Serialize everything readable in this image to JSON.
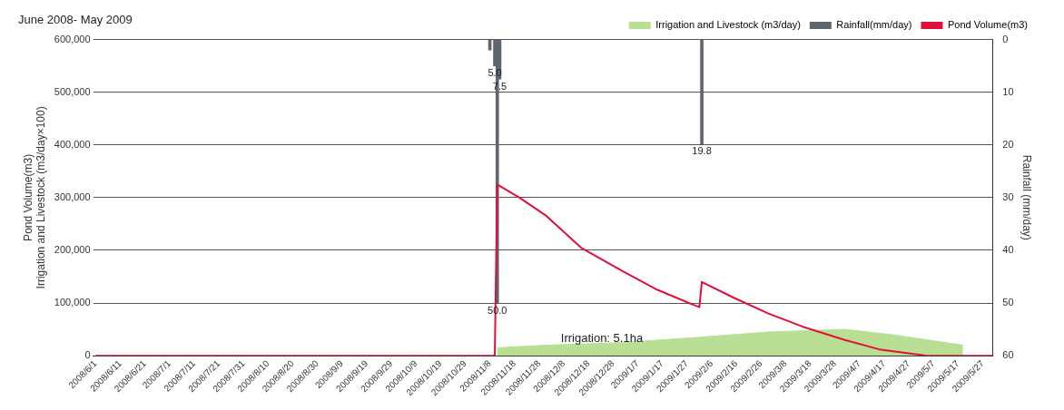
{
  "chart_data": {
    "type": "line",
    "title": "June 2008- May 2009",
    "xlim": [
      "2008-05-31",
      "2009-05-31"
    ],
    "xticks": [
      {
        "value": "2008-06-01",
        "label": "2008/6/1"
      },
      {
        "value": "2008-06-11",
        "label": "2008/6/11"
      },
      {
        "value": "2008-06-21",
        "label": "2008/6/21"
      },
      {
        "value": "2008-07-01",
        "label": "2008/7/1"
      },
      {
        "value": "2008-07-11",
        "label": "2008/7/11"
      },
      {
        "value": "2008-07-21",
        "label": "2008/7/21"
      },
      {
        "value": "2008-07-31",
        "label": "2008/7/31"
      },
      {
        "value": "2008-08-10",
        "label": "2008/8/10"
      },
      {
        "value": "2008-08-20",
        "label": "2008/8/20"
      },
      {
        "value": "2008-08-30",
        "label": "2008/8/30"
      },
      {
        "value": "2008-09-09",
        "label": "2008/9/9"
      },
      {
        "value": "2008-09-19",
        "label": "2008/9/19"
      },
      {
        "value": "2008-09-29",
        "label": "2008/9/29"
      },
      {
        "value": "2008-10-09",
        "label": "2008/10/9"
      },
      {
        "value": "2008-10-19",
        "label": "2008/10/19"
      },
      {
        "value": "2008-10-29",
        "label": "2008/10/29"
      },
      {
        "value": "2008-11-08",
        "label": "2008/11/8"
      },
      {
        "value": "2008-11-18",
        "label": "2008/11/18"
      },
      {
        "value": "2008-11-28",
        "label": "2008/11/28"
      },
      {
        "value": "2008-12-08",
        "label": "2008/12/8"
      },
      {
        "value": "2008-12-18",
        "label": "2008/12/18"
      },
      {
        "value": "2008-12-28",
        "label": "2008/12/28"
      },
      {
        "value": "2009-01-07",
        "label": "2009/1/7"
      },
      {
        "value": "2009-01-17",
        "label": "2009/1/17"
      },
      {
        "value": "2009-01-27",
        "label": "2009/1/27"
      },
      {
        "value": "2009-02-06",
        "label": "2009/2/6"
      },
      {
        "value": "2009-02-16",
        "label": "2009/2/16"
      },
      {
        "value": "2009-02-26",
        "label": "2009/2/26"
      },
      {
        "value": "2009-03-08",
        "label": "2009/3/8"
      },
      {
        "value": "2009-03-18",
        "label": "2009/3/18"
      },
      {
        "value": "2009-03-28",
        "label": "2009/3/28"
      },
      {
        "value": "2009-04-07",
        "label": "2009/4/7"
      },
      {
        "value": "2009-04-17",
        "label": "2009/4/17"
      },
      {
        "value": "2009-04-27",
        "label": "2009/4/27"
      },
      {
        "value": "2009-05-07",
        "label": "2009/5/7"
      },
      {
        "value": "2009-05-17",
        "label": "2009/5/17"
      },
      {
        "value": "2009-05-27",
        "label": "2009/5/27"
      }
    ],
    "ylabel": "Pond Volume(m3)\nIrrigation and Livestock (m3/day×100)",
    "y2label": "Rainfall (mm/day)",
    "ylim": [
      0,
      600000
    ],
    "yticks": [
      {
        "value": 0,
        "label": "0"
      },
      {
        "value": 100000,
        "label": "100,000"
      },
      {
        "value": 200000,
        "label": "200,000"
      },
      {
        "value": 300000,
        "label": "300,000"
      },
      {
        "value": 400000,
        "label": "400,000"
      },
      {
        "value": 500000,
        "label": "500,000"
      },
      {
        "value": 600000,
        "label": "600,000"
      }
    ],
    "y2lim": [
      60,
      0
    ],
    "y2ticks": [
      0,
      10,
      20,
      30,
      40,
      50,
      60
    ],
    "grid": "y",
    "legend": "top right",
    "marker": "none",
    "annotations": [
      "Irrigation: 5.1ha"
    ],
    "series": [
      {
        "name": "Irrigation and Livestock (m3/day)",
        "type": "area",
        "color": "#b9df95",
        "x": [
          "2008-11-11",
          "2008-12-01",
          "2009-01-01",
          "2009-02-01",
          "2009-03-01",
          "2009-04-01",
          "2009-04-20",
          "2009-05-19"
        ],
        "values": [
          15000,
          20000,
          25000,
          35000,
          45000,
          50000,
          40000,
          20000
        ]
      },
      {
        "name": "Rainfall(mm/day)",
        "type": "bar",
        "axis": "y2",
        "color": "#5f6670",
        "x": [
          "2008-11-08",
          "2008-11-10",
          "2008-11-11",
          "2008-11-12",
          "2009-02-02"
        ],
        "values": [
          2,
          5,
          50,
          7.5,
          19.8
        ],
        "value_labels": [
          null,
          "5.0",
          "50.0",
          "7.5",
          "19.8"
        ]
      },
      {
        "name": "Pond Volume(m3)",
        "color": "#e0103a",
        "x": [
          "2008-06-01",
          "2008-11-10",
          "2008-11-11",
          "2008-11-20",
          "2008-12-01",
          "2008-12-15",
          "2009-01-01",
          "2009-01-15",
          "2009-02-01",
          "2009-02-02",
          "2009-02-15",
          "2009-03-01",
          "2009-03-15",
          "2009-04-01",
          "2009-04-15",
          "2009-05-04",
          "2009-05-31"
        ],
        "values": [
          0,
          0,
          325000,
          300000,
          265000,
          205000,
          160000,
          125000,
          92000,
          140000,
          110000,
          80000,
          55000,
          30000,
          12000,
          0,
          0
        ]
      }
    ]
  }
}
